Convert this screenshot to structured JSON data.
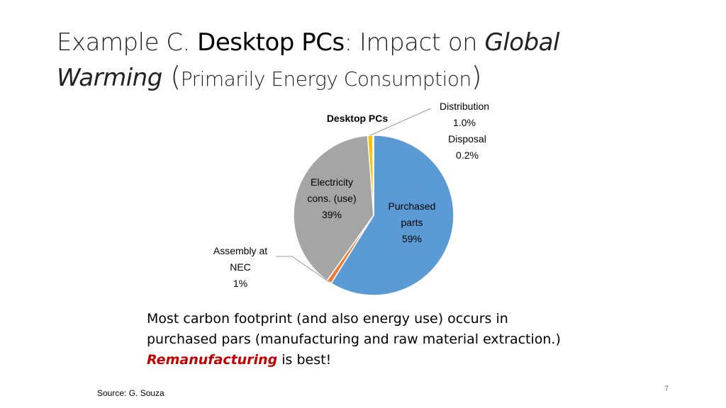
{
  "slide": {
    "title_prefix": "Example C. ",
    "title_bold": "Desktop PCs",
    "title_mid": ": Impact on ",
    "title_global": "Global",
    "title_warming": "Warming",
    "title_paren_open": " (",
    "title_small": "Primarily Energy Consumption",
    "title_paren_close": ")",
    "body_line1": "Most carbon footprint (and also energy use) occurs in",
    "body_line2": "purchased pars (manufacturing and raw material extraction.)",
    "body_highlight": "Remanufacturing",
    "body_rest": " is best!",
    "source": "Source: G. Souza",
    "page_number": "7",
    "highlight_color": "#c00000"
  },
  "chart_data": {
    "type": "pie",
    "title": "Desktop PCs",
    "slices": [
      {
        "name": "Purchased parts",
        "label_lines": [
          "Purchased",
          "parts",
          "59%"
        ],
        "value": 59,
        "color": "#5b9bd5"
      },
      {
        "name": "Assembly at NEC",
        "label_lines": [
          "Assembly at",
          "NEC",
          "1%"
        ],
        "value": 1,
        "color": "#ed7d31"
      },
      {
        "name": "Electricity cons. (use)",
        "label_lines": [
          "Electricity",
          "cons. (use)",
          "39%"
        ],
        "value": 39,
        "color": "#a5a5a5"
      },
      {
        "name": "Distribution",
        "label_lines": [
          "Distribution",
          "1.0%"
        ],
        "value": 1.0,
        "color": "#ffc000"
      },
      {
        "name": "Disposal",
        "label_lines": [
          "Disposal",
          "0.2%"
        ],
        "value": 0.2,
        "color": "#4472c4"
      }
    ]
  }
}
